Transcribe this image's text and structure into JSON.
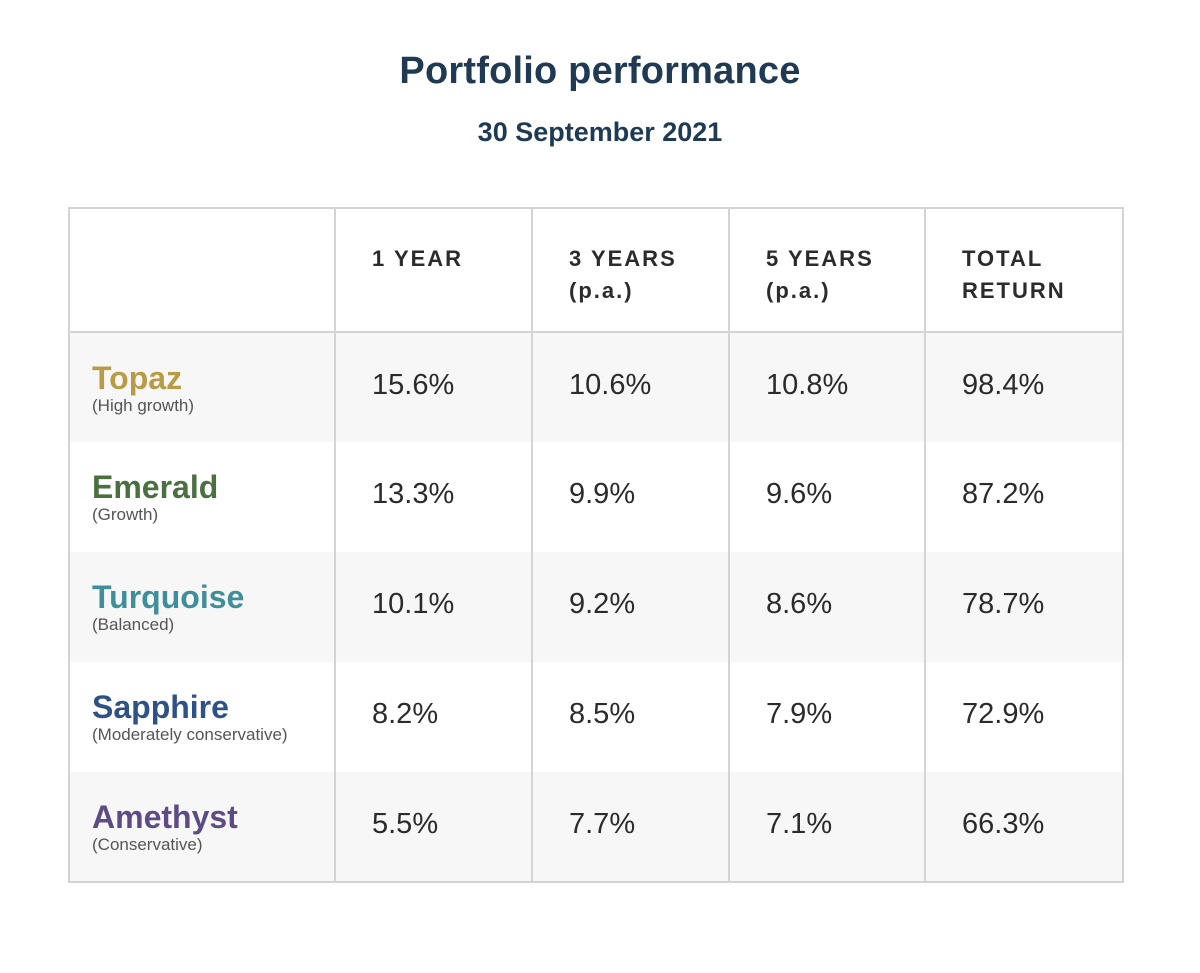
{
  "chart_data": {
    "type": "table",
    "title": "Portfolio performance",
    "subtitle": "30 September 2021",
    "columns": [
      {
        "line1": "",
        "line2": ""
      },
      {
        "line1": "1 YEAR",
        "line2": ""
      },
      {
        "line1": "3 YEARS",
        "line2": "(p.a.)"
      },
      {
        "line1": "5 YEARS",
        "line2": "(p.a.)"
      },
      {
        "line1": "TOTAL",
        "line2": "RETURN"
      }
    ],
    "rows": [
      {
        "name": "Topaz",
        "desc": "(High growth)",
        "color": "#b99b45",
        "values": [
          "15.6%",
          "10.6%",
          "10.8%",
          "98.4%"
        ]
      },
      {
        "name": "Emerald",
        "desc": "(Growth)",
        "color": "#4a7040",
        "values": [
          "13.3%",
          "9.9%",
          "9.6%",
          "87.2%"
        ]
      },
      {
        "name": "Turquoise",
        "desc": "(Balanced)",
        "color": "#3f8f9b",
        "values": [
          "10.1%",
          "9.2%",
          "8.6%",
          "78.7%"
        ]
      },
      {
        "name": "Sapphire",
        "desc": "(Moderately conservative)",
        "color": "#2f5286",
        "values": [
          "8.2%",
          "8.5%",
          "7.9%",
          "72.9%"
        ]
      },
      {
        "name": "Amethyst",
        "desc": "(Conservative)",
        "color": "#5d4c84",
        "values": [
          "5.5%",
          "7.7%",
          "7.1%",
          "66.3%"
        ]
      }
    ]
  }
}
